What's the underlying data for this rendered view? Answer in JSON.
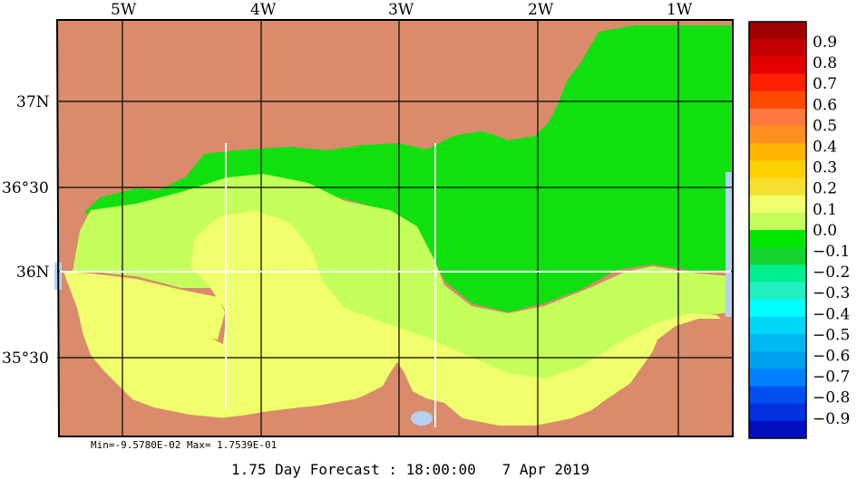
{
  "map": {
    "lon_labels": [
      "5W",
      "4W",
      "3W",
      "2W",
      "1W"
    ],
    "lat_labels": [
      "37N",
      "36°30",
      "36N",
      "35°30"
    ],
    "colors": {
      "land": "#d98b6c",
      "water_blue": "#b4d2f0",
      "green": "#10e010",
      "lime": "#c4ff5c",
      "yellow": "#f0ff6c",
      "grid": "#ffffff",
      "frame": "#000000"
    }
  },
  "colorbar": {
    "labels": [
      "0.9",
      "0.8",
      "0.7",
      "0.6",
      "0.5",
      "0.4",
      "0.3",
      "0.2",
      "0.1",
      "0.0",
      "−0.1",
      "−0.2",
      "−0.3",
      "−0.4",
      "−0.5",
      "−0.6",
      "−0.7",
      "−0.8",
      "−0.9"
    ],
    "colors": [
      "#a00000",
      "#c40000",
      "#e40000",
      "#ff2000",
      "#ff4800",
      "#ff7840",
      "#ff9020",
      "#ffb400",
      "#ffd000",
      "#f5e030",
      "#f0ff6c",
      "#c4ff5c",
      "#00e800",
      "#14d430",
      "#00f090",
      "#20f0c0",
      "#00ffff",
      "#00d8f8",
      "#00b8f0",
      "#00a0f0",
      "#0080ff",
      "#0050f0",
      "#0030e0",
      "#0010c0"
    ]
  },
  "stats": {
    "text": "Min=-9.5780E-02  Max= 1.7539E-01"
  },
  "forecast": {
    "text": "1.75 Day Forecast : 18:00:00   7 Apr 2019"
  }
}
